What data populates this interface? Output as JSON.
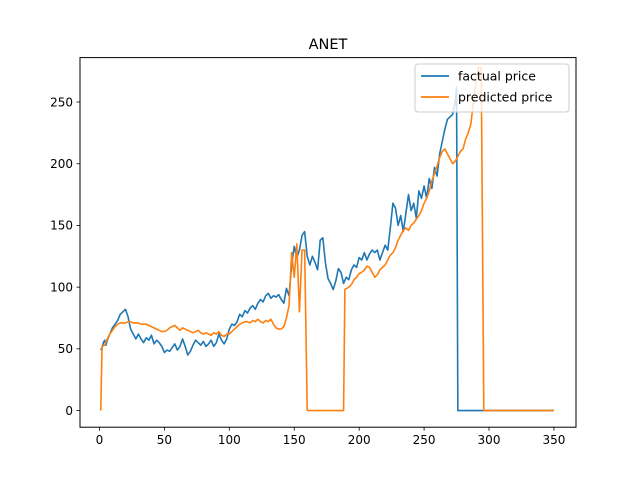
{
  "chart_data": {
    "type": "line",
    "title": "ANET",
    "xlabel": "",
    "ylabel": "",
    "xlim": [
      -15,
      367
    ],
    "ylim": [
      -13.5,
      286
    ],
    "xticks": [
      0,
      50,
      100,
      150,
      200,
      250,
      300,
      350
    ],
    "yticks": [
      0,
      50,
      100,
      150,
      200,
      250
    ],
    "grid": false,
    "legend_position": "upper right",
    "series": [
      {
        "name": "factual price",
        "color": "#1f77b4",
        "points": [
          [
            1,
            49
          ],
          [
            2,
            51
          ],
          [
            3,
            55
          ],
          [
            4,
            57
          ],
          [
            5,
            53
          ],
          [
            6,
            57
          ],
          [
            8,
            62
          ],
          [
            10,
            67
          ],
          [
            12,
            70
          ],
          [
            14,
            73
          ],
          [
            16,
            78
          ],
          [
            18,
            80
          ],
          [
            20,
            82
          ],
          [
            22,
            76
          ],
          [
            24,
            66
          ],
          [
            26,
            62
          ],
          [
            28,
            58
          ],
          [
            30,
            62
          ],
          [
            32,
            58
          ],
          [
            34,
            55
          ],
          [
            36,
            59
          ],
          [
            38,
            57
          ],
          [
            40,
            61
          ],
          [
            42,
            54
          ],
          [
            44,
            57
          ],
          [
            46,
            55
          ],
          [
            48,
            52
          ],
          [
            50,
            47
          ],
          [
            52,
            49
          ],
          [
            54,
            48
          ],
          [
            56,
            51
          ],
          [
            58,
            54
          ],
          [
            60,
            49
          ],
          [
            62,
            52
          ],
          [
            64,
            58
          ],
          [
            66,
            52
          ],
          [
            68,
            45
          ],
          [
            70,
            48
          ],
          [
            72,
            53
          ],
          [
            74,
            57
          ],
          [
            76,
            55
          ],
          [
            78,
            53
          ],
          [
            80,
            56
          ],
          [
            82,
            52
          ],
          [
            84,
            54
          ],
          [
            86,
            57
          ],
          [
            88,
            52
          ],
          [
            90,
            55
          ],
          [
            92,
            62
          ],
          [
            94,
            57
          ],
          [
            96,
            54
          ],
          [
            98,
            58
          ],
          [
            100,
            66
          ],
          [
            102,
            70
          ],
          [
            104,
            69
          ],
          [
            106,
            72
          ],
          [
            108,
            78
          ],
          [
            110,
            76
          ],
          [
            112,
            81
          ],
          [
            114,
            79
          ],
          [
            116,
            83
          ],
          [
            118,
            85
          ],
          [
            120,
            82
          ],
          [
            122,
            87
          ],
          [
            124,
            90
          ],
          [
            126,
            88
          ],
          [
            128,
            93
          ],
          [
            130,
            95
          ],
          [
            132,
            91
          ],
          [
            134,
            93
          ],
          [
            136,
            92
          ],
          [
            138,
            94
          ],
          [
            140,
            90
          ],
          [
            142,
            87
          ],
          [
            144,
            99
          ],
          [
            146,
            93
          ],
          [
            148,
            118
          ],
          [
            150,
            133
          ],
          [
            152,
            124
          ],
          [
            154,
            130
          ],
          [
            156,
            142
          ],
          [
            158,
            145
          ],
          [
            160,
            125
          ],
          [
            162,
            118
          ],
          [
            164,
            125
          ],
          [
            166,
            120
          ],
          [
            168,
            114
          ],
          [
            170,
            138
          ],
          [
            172,
            140
          ],
          [
            174,
            120
          ],
          [
            176,
            107
          ],
          [
            178,
            103
          ],
          [
            180,
            98
          ],
          [
            182,
            105
          ],
          [
            184,
            115
          ],
          [
            186,
            112
          ],
          [
            188,
            103
          ],
          [
            190,
            108
          ],
          [
            192,
            106
          ],
          [
            194,
            114
          ],
          [
            196,
            118
          ],
          [
            198,
            116
          ],
          [
            200,
            124
          ],
          [
            202,
            122
          ],
          [
            204,
            128
          ],
          [
            206,
            122
          ],
          [
            208,
            127
          ],
          [
            210,
            130
          ],
          [
            212,
            128
          ],
          [
            214,
            130
          ],
          [
            216,
            122
          ],
          [
            218,
            128
          ],
          [
            220,
            134
          ],
          [
            222,
            130
          ],
          [
            224,
            148
          ],
          [
            226,
            168
          ],
          [
            228,
            164
          ],
          [
            230,
            150
          ],
          [
            232,
            158
          ],
          [
            234,
            145
          ],
          [
            236,
            160
          ],
          [
            238,
            175
          ],
          [
            240,
            162
          ],
          [
            242,
            168
          ],
          [
            244,
            156
          ],
          [
            246,
            178
          ],
          [
            248,
            172
          ],
          [
            250,
            182
          ],
          [
            252,
            172
          ],
          [
            254,
            188
          ],
          [
            256,
            180
          ],
          [
            258,
            197
          ],
          [
            260,
            190
          ],
          [
            262,
            208
          ],
          [
            264,
            218
          ],
          [
            266,
            228
          ],
          [
            268,
            236
          ],
          [
            270,
            238
          ],
          [
            272,
            240
          ],
          [
            274,
            250
          ],
          [
            275,
            262
          ],
          [
            276,
            0
          ],
          [
            350,
            0
          ]
        ]
      },
      {
        "name": "predicted price",
        "color": "#ff7f0e",
        "points": [
          [
            1,
            0
          ],
          [
            2,
            52
          ],
          [
            4,
            53
          ],
          [
            6,
            58
          ],
          [
            8,
            62
          ],
          [
            10,
            65
          ],
          [
            12,
            68
          ],
          [
            14,
            70
          ],
          [
            16,
            71
          ],
          [
            18,
            71
          ],
          [
            20,
            71
          ],
          [
            22,
            72
          ],
          [
            24,
            72
          ],
          [
            26,
            71
          ],
          [
            28,
            71
          ],
          [
            30,
            71
          ],
          [
            32,
            70
          ],
          [
            34,
            70
          ],
          [
            36,
            70
          ],
          [
            38,
            69
          ],
          [
            40,
            68
          ],
          [
            42,
            67
          ],
          [
            44,
            66
          ],
          [
            46,
            65
          ],
          [
            48,
            64
          ],
          [
            50,
            64
          ],
          [
            52,
            65
          ],
          [
            54,
            67
          ],
          [
            56,
            68
          ],
          [
            58,
            69
          ],
          [
            60,
            67
          ],
          [
            62,
            65
          ],
          [
            64,
            67
          ],
          [
            66,
            66
          ],
          [
            68,
            65
          ],
          [
            70,
            64
          ],
          [
            72,
            63
          ],
          [
            74,
            64
          ],
          [
            76,
            65
          ],
          [
            78,
            63
          ],
          [
            80,
            62
          ],
          [
            82,
            63
          ],
          [
            84,
            62
          ],
          [
            86,
            61
          ],
          [
            88,
            63
          ],
          [
            90,
            62
          ],
          [
            92,
            64
          ],
          [
            94,
            61
          ],
          [
            96,
            60
          ],
          [
            98,
            62
          ],
          [
            100,
            62
          ],
          [
            102,
            64
          ],
          [
            104,
            66
          ],
          [
            106,
            68
          ],
          [
            108,
            70
          ],
          [
            110,
            71
          ],
          [
            112,
            72
          ],
          [
            114,
            72
          ],
          [
            116,
            71
          ],
          [
            118,
            73
          ],
          [
            120,
            72
          ],
          [
            122,
            74
          ],
          [
            124,
            72
          ],
          [
            126,
            71
          ],
          [
            128,
            73
          ],
          [
            130,
            72
          ],
          [
            132,
            74
          ],
          [
            134,
            70
          ],
          [
            136,
            67
          ],
          [
            138,
            66
          ],
          [
            140,
            66
          ],
          [
            142,
            68
          ],
          [
            144,
            75
          ],
          [
            146,
            85
          ],
          [
            148,
            128
          ],
          [
            150,
            108
          ],
          [
            152,
            135
          ],
          [
            154,
            80
          ],
          [
            156,
            130
          ],
          [
            158,
            130
          ],
          [
            160,
            0
          ],
          [
            188,
            0
          ],
          [
            189,
            98
          ],
          [
            192,
            100
          ],
          [
            194,
            102
          ],
          [
            196,
            106
          ],
          [
            198,
            108
          ],
          [
            200,
            111
          ],
          [
            202,
            112
          ],
          [
            204,
            114
          ],
          [
            206,
            117
          ],
          [
            208,
            116
          ],
          [
            210,
            112
          ],
          [
            212,
            108
          ],
          [
            214,
            110
          ],
          [
            216,
            114
          ],
          [
            218,
            116
          ],
          [
            220,
            118
          ],
          [
            222,
            122
          ],
          [
            224,
            126
          ],
          [
            226,
            128
          ],
          [
            228,
            132
          ],
          [
            230,
            138
          ],
          [
            232,
            142
          ],
          [
            234,
            146
          ],
          [
            236,
            148
          ],
          [
            238,
            146
          ],
          [
            240,
            150
          ],
          [
            242,
            152
          ],
          [
            244,
            155
          ],
          [
            246,
            158
          ],
          [
            248,
            162
          ],
          [
            250,
            168
          ],
          [
            252,
            172
          ],
          [
            254,
            178
          ],
          [
            256,
            186
          ],
          [
            258,
            192
          ],
          [
            260,
            198
          ],
          [
            262,
            205
          ],
          [
            264,
            210
          ],
          [
            266,
            212
          ],
          [
            268,
            208
          ],
          [
            270,
            204
          ],
          [
            272,
            200
          ],
          [
            274,
            202
          ],
          [
            276,
            206
          ],
          [
            278,
            210
          ],
          [
            280,
            212
          ],
          [
            282,
            220
          ],
          [
            284,
            225
          ],
          [
            286,
            232
          ],
          [
            288,
            250
          ],
          [
            290,
            265
          ],
          [
            292,
            278
          ],
          [
            294,
            278
          ],
          [
            296,
            0
          ],
          [
            350,
            0
          ]
        ]
      }
    ]
  }
}
